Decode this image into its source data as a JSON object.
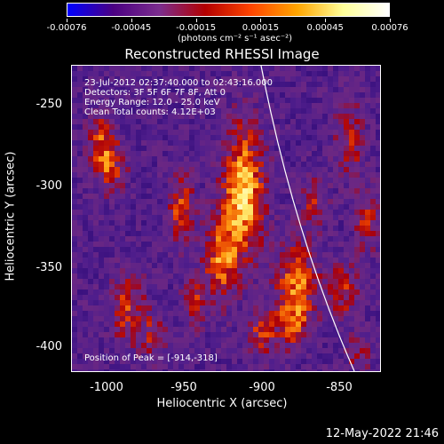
{
  "colorbar": {
    "ticks": [
      "-0.00076",
      "-0.00045",
      "-0.00015",
      "0.00015",
      "0.00045",
      "0.00076"
    ],
    "units": "(photons cm⁻² s⁻¹ asec⁻²)",
    "colors": [
      "#0000ff",
      "#4b0082",
      "#7b2d8e",
      "#b30000",
      "#ff4500",
      "#ffa500",
      "#ffff99",
      "#ffffff"
    ]
  },
  "title": "Reconstructed RHESSI Image",
  "annotation": {
    "line1": "23-Jul-2012 02:37:40.000 to 02:43:16.000",
    "line2": "Detectors: 3F 5F 6F 7F 8F, Att 0",
    "line3": "Energy Range: 12.0 - 25.0 keV",
    "line4": "Clean     Total counts: 4.12E+03",
    "peak": "Position of Peak = [-914,-318]"
  },
  "axes": {
    "xlabel": "Heliocentric X (arcsec)",
    "ylabel": "Heliocentric Y (arcsec)",
    "xticks": [
      "-1000",
      "-950",
      "-900",
      "-850"
    ],
    "yticks": [
      "-250",
      "-300",
      "-350",
      "-400"
    ]
  },
  "datestamp": "12-May-2022 21:46"
}
